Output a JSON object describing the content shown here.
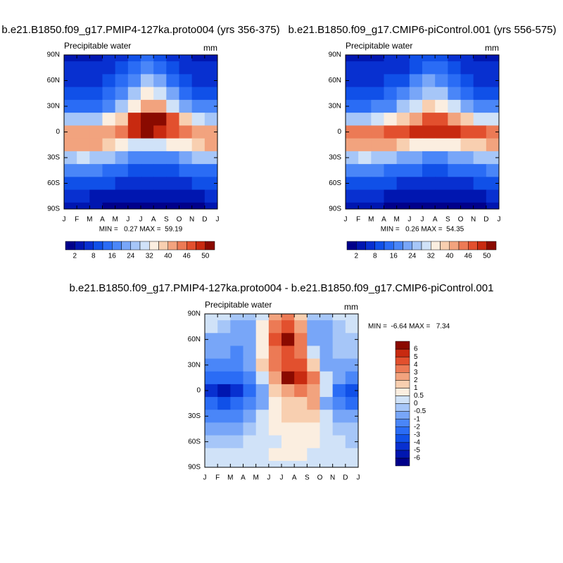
{
  "chart_data": [
    {
      "type": "contour",
      "title": "b.e21.B1850.f09_g17.PMIP4-127ka.proto004 (yrs 356-375)",
      "subtitle": "Precipitable water",
      "units": "mm",
      "stats": "MIN =   0.27 MAX =  59.19",
      "x_labels": [
        "J",
        "F",
        "M",
        "A",
        "M",
        "J",
        "J",
        "A",
        "S",
        "O",
        "N",
        "D",
        "J"
      ],
      "ylim": [
        -90,
        90
      ],
      "yticks": [
        {
          "value": 90,
          "label": "90N"
        },
        {
          "value": 60,
          "label": "60N"
        },
        {
          "value": 30,
          "label": "30N"
        },
        {
          "value": 0,
          "label": "0"
        },
        {
          "value": -30,
          "label": "30S"
        },
        {
          "value": -60,
          "label": "60S"
        },
        {
          "value": -90,
          "label": "90S"
        }
      ],
      "y": [
        90,
        75,
        60,
        45,
        30,
        15,
        0,
        -15,
        -30,
        -45,
        -60,
        -75,
        -90
      ],
      "rows": [
        [
          3,
          3,
          3,
          4,
          6,
          10,
          13,
          11,
          7,
          4,
          3,
          3
        ],
        [
          4,
          4,
          4,
          5,
          8,
          13,
          17,
          14,
          9,
          5,
          4,
          4
        ],
        [
          6,
          6,
          6,
          8,
          12,
          19,
          24,
          21,
          14,
          9,
          7,
          6
        ],
        [
          9,
          9,
          10,
          12,
          17,
          26,
          33,
          30,
          21,
          14,
          11,
          10
        ],
        [
          15,
          14,
          15,
          19,
          25,
          35,
          42,
          40,
          31,
          23,
          18,
          16
        ],
        [
          26,
          25,
          27,
          32,
          38,
          48,
          55,
          54,
          46,
          37,
          30,
          27
        ],
        [
          40,
          40,
          41,
          43,
          45,
          48,
          50,
          49,
          47,
          44,
          42,
          41
        ],
        [
          40,
          40,
          40,
          38,
          34,
          31,
          30,
          31,
          32,
          35,
          38,
          40
        ],
        [
          27,
          28,
          27,
          25,
          22,
          19,
          17,
          17,
          18,
          21,
          24,
          26
        ],
        [
          16,
          17,
          16,
          15,
          13,
          11,
          10,
          10,
          11,
          13,
          14,
          15
        ],
        [
          9,
          10,
          9,
          8,
          7,
          6,
          6,
          6,
          6,
          7,
          8,
          9
        ],
        [
          4,
          4,
          3,
          3,
          2,
          2,
          2,
          2,
          2,
          2,
          3,
          4
        ],
        [
          2,
          2,
          2,
          1,
          1,
          1,
          1,
          1,
          1,
          1,
          1,
          2
        ]
      ],
      "colorbar": {
        "orientation": "horizontal",
        "levels": [
          2,
          4,
          8,
          12,
          16,
          20,
          24,
          28,
          32,
          36,
          40,
          44,
          46,
          48,
          50
        ],
        "ticks": [
          2,
          8,
          16,
          24,
          32,
          40,
          46,
          50
        ],
        "colors": [
          "#00008a",
          "#0016b0",
          "#0830d0",
          "#1050e8",
          "#2a6cf5",
          "#4a86f8",
          "#78a6f8",
          "#a6c6f8",
          "#d0e2f8",
          "#fbeee0",
          "#f8cfb0",
          "#f2a37e",
          "#ec7a55",
          "#e2502e",
          "#c82a10",
          "#8a0a00"
        ]
      }
    },
    {
      "type": "contour",
      "title": "b.e21.B1850.f09_g17.CMIP6-piControl.001 (yrs 556-575)",
      "subtitle": "Precipitable water",
      "units": "mm",
      "stats": "MIN =   0.26 MAX =  54.35",
      "x_labels": [
        "J",
        "F",
        "M",
        "A",
        "M",
        "J",
        "J",
        "A",
        "S",
        "O",
        "N",
        "D",
        "J"
      ],
      "ylim": [
        -90,
        90
      ],
      "yticks": [
        {
          "value": 90,
          "label": "90N"
        },
        {
          "value": 60,
          "label": "60N"
        },
        {
          "value": 30,
          "label": "30N"
        },
        {
          "value": 0,
          "label": "0"
        },
        {
          "value": -30,
          "label": "30S"
        },
        {
          "value": -60,
          "label": "60S"
        },
        {
          "value": -90,
          "label": "90S"
        }
      ],
      "y": [
        90,
        75,
        60,
        45,
        30,
        15,
        0,
        -15,
        -30,
        -45,
        -60,
        -75,
        -90
      ],
      "rows": [
        [
          3,
          3,
          3,
          4,
          6,
          9,
          11,
          10,
          7,
          4,
          3,
          3
        ],
        [
          4,
          4,
          4,
          5,
          7,
          11,
          14,
          12,
          9,
          5,
          4,
          4
        ],
        [
          6,
          6,
          6,
          8,
          11,
          16,
          20,
          18,
          13,
          9,
          7,
          6
        ],
        [
          9,
          9,
          10,
          12,
          16,
          22,
          27,
          25,
          19,
          14,
          11,
          10
        ],
        [
          15,
          15,
          16,
          19,
          24,
          31,
          36,
          35,
          29,
          23,
          18,
          16
        ],
        [
          27,
          27,
          29,
          32,
          37,
          43,
          47,
          47,
          43,
          37,
          31,
          28
        ],
        [
          44,
          44,
          45,
          46,
          47,
          48,
          49,
          49,
          48,
          47,
          46,
          45
        ],
        [
          43,
          43,
          42,
          40,
          36,
          33,
          32,
          32,
          33,
          36,
          39,
          42
        ],
        [
          27,
          28,
          27,
          25,
          22,
          20,
          19,
          19,
          20,
          22,
          25,
          26
        ],
        [
          17,
          17,
          16,
          15,
          13,
          12,
          11,
          11,
          12,
          13,
          15,
          16
        ],
        [
          9,
          10,
          9,
          8,
          7,
          6,
          6,
          6,
          6,
          7,
          8,
          9
        ],
        [
          4,
          4,
          4,
          3,
          3,
          2,
          2,
          2,
          2,
          3,
          3,
          4
        ],
        [
          2,
          2,
          2,
          1,
          1,
          1,
          1,
          1,
          1,
          1,
          1,
          2
        ]
      ],
      "colorbar": {
        "orientation": "horizontal",
        "levels": [
          2,
          4,
          8,
          12,
          16,
          20,
          24,
          28,
          32,
          36,
          40,
          44,
          46,
          48,
          50
        ],
        "ticks": [
          2,
          8,
          16,
          24,
          32,
          40,
          46,
          50
        ],
        "colors": [
          "#00008a",
          "#0016b0",
          "#0830d0",
          "#1050e8",
          "#2a6cf5",
          "#4a86f8",
          "#78a6f8",
          "#a6c6f8",
          "#d0e2f8",
          "#fbeee0",
          "#f8cfb0",
          "#f2a37e",
          "#ec7a55",
          "#e2502e",
          "#c82a10",
          "#8a0a00"
        ]
      }
    },
    {
      "type": "contour",
      "title": "b.e21.B1850.f09_g17.PMIP4-127ka.proto004 - b.e21.B1850.f09_g17.CMIP6-piControl.001",
      "subtitle": "Precipitable water",
      "units": "mm",
      "stats": "MIN =  -6.64 MAX =   7.34",
      "x_labels": [
        "J",
        "F",
        "M",
        "A",
        "M",
        "J",
        "J",
        "A",
        "S",
        "O",
        "N",
        "D",
        "J"
      ],
      "ylim": [
        -90,
        90
      ],
      "yticks": [
        {
          "value": 90,
          "label": "90N"
        },
        {
          "value": 60,
          "label": "60N"
        },
        {
          "value": 30,
          "label": "30N"
        },
        {
          "value": 0,
          "label": "0"
        },
        {
          "value": -30,
          "label": "30S"
        },
        {
          "value": -60,
          "label": "60S"
        },
        {
          "value": -90,
          "label": "90S"
        }
      ],
      "y": [
        90,
        75,
        60,
        45,
        30,
        15,
        0,
        -15,
        -30,
        -45,
        -60,
        -75,
        -90
      ],
      "rows": [
        [
          0,
          0,
          -0.5,
          -0.5,
          0,
          2,
          3,
          1,
          -0.5,
          -0.5,
          0,
          0
        ],
        [
          0,
          -0.5,
          -1,
          -1,
          0.5,
          3,
          4,
          2,
          -1,
          -1,
          -0.5,
          0
        ],
        [
          -1,
          -1,
          -1,
          -1,
          0.5,
          4,
          6,
          3,
          -1,
          -1,
          -0.5,
          -0.5
        ],
        [
          -1,
          -1,
          -2,
          -1,
          0.5,
          3,
          4,
          3,
          0,
          -1,
          -0.5,
          -0.5
        ],
        [
          -2,
          -2,
          -2,
          -1,
          1,
          3,
          4,
          4,
          1,
          -1,
          -1,
          -1
        ],
        [
          -3,
          -3,
          -3,
          -2,
          0,
          2,
          6,
          5,
          3,
          0,
          -1,
          -2
        ],
        [
          -5,
          -6,
          -5,
          -3,
          -1,
          1,
          2,
          3,
          2,
          0,
          -3,
          -4
        ],
        [
          -3,
          -4,
          -3,
          -2,
          -1,
          0.5,
          1,
          1,
          2,
          -1,
          -2,
          -3
        ],
        [
          -2,
          -2,
          -2,
          -1,
          0,
          0.5,
          1,
          1,
          1,
          0,
          -1,
          -1
        ],
        [
          -1,
          -1,
          -1,
          -0.5,
          0,
          0.5,
          0.5,
          0.5,
          0.5,
          0,
          -0.5,
          -0.5
        ],
        [
          -0.5,
          -0.5,
          -0.5,
          0,
          0,
          0,
          0.5,
          0.5,
          0.5,
          0,
          0,
          -0.5
        ],
        [
          0,
          0,
          0,
          0,
          0,
          0.5,
          0.5,
          0.5,
          0,
          0,
          0,
          0
        ],
        [
          0,
          0,
          0,
          0,
          0,
          0,
          0,
          0,
          0,
          0,
          0,
          0
        ]
      ],
      "colorbar": {
        "orientation": "vertical",
        "levels": [
          -6,
          -5,
          -4,
          -3,
          -2,
          -1,
          -0.5,
          0,
          0.5,
          1,
          2,
          3,
          4,
          5,
          6
        ],
        "ticks": [
          -6,
          -5,
          -4,
          -3,
          -2,
          -1,
          -0.5,
          0,
          0.5,
          1,
          2,
          3,
          4,
          5,
          6
        ],
        "colors": [
          "#00008a",
          "#0016b0",
          "#0830d0",
          "#1050e8",
          "#2a6cf5",
          "#4a86f8",
          "#78a6f8",
          "#a6c6f8",
          "#d0e2f8",
          "#fbeee0",
          "#f8cfb0",
          "#f2a37e",
          "#ec7a55",
          "#e2502e",
          "#c82a10",
          "#8a0a00"
        ]
      }
    }
  ]
}
